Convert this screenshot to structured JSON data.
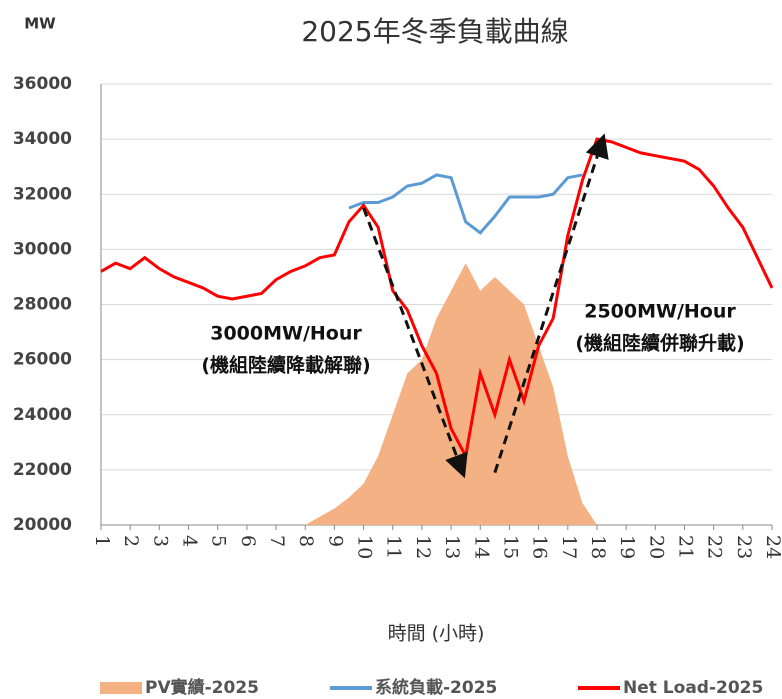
{
  "chart_data": {
    "type": "line",
    "title": "2025年冬季負載曲線",
    "y_axis_label": "MW",
    "x_axis_label": "時間 (小時)",
    "annotations": [
      "3000MW/Hour",
      "(機組陸續降載解聯)",
      "2500MW/Hour",
      "(機組陸續併聯升載)"
    ],
    "arrows": [
      {
        "x": [
          10,
          13.4
        ],
        "y": [
          31500,
          21900
        ]
      },
      {
        "x": [
          14.5,
          18.2
        ],
        "y": [
          21900,
          34000
        ]
      }
    ],
    "x": [
      1,
      1.5,
      2,
      2.5,
      3,
      3.5,
      4,
      4.5,
      5,
      5.5,
      6,
      6.5,
      7,
      7.5,
      8,
      8.5,
      9,
      9.5,
      10,
      10.5,
      11,
      11.5,
      12,
      12.5,
      13,
      13.5,
      14,
      14.5,
      15,
      15.5,
      16,
      16.5,
      17,
      17.5,
      18,
      18.5,
      19,
      19.5,
      20,
      20.5,
      21,
      21.5,
      22,
      22.5,
      23,
      23.5,
      24
    ],
    "xlim": [
      1,
      24
    ],
    "xticks": [
      1,
      2,
      3,
      4,
      5,
      6,
      7,
      8,
      9,
      10,
      11,
      12,
      13,
      14,
      15,
      16,
      17,
      18,
      19,
      20,
      21,
      22,
      23,
      24
    ],
    "ylim": [
      20000,
      36000
    ],
    "yticks": [
      20000,
      22000,
      24000,
      26000,
      28000,
      30000,
      32000,
      34000,
      36000
    ],
    "grid": true,
    "series": [
      {
        "name": "PV實績-2025",
        "color": "#f4b183",
        "kind": "area",
        "values": [
          null,
          null,
          null,
          null,
          null,
          null,
          null,
          null,
          null,
          null,
          null,
          null,
          null,
          null,
          20000,
          20300,
          20600,
          21000,
          21500,
          22500,
          24000,
          25500,
          26000,
          27500,
          28500,
          29500,
          28500,
          29000,
          28500,
          28000,
          26500,
          25000,
          22500,
          20800,
          20000,
          null,
          null,
          null,
          null,
          null,
          null,
          null,
          null,
          null,
          null,
          null,
          null
        ]
      },
      {
        "name": "系統負載-2025",
        "color": "#5b9bd5",
        "kind": "line",
        "values": [
          null,
          null,
          null,
          null,
          null,
          null,
          null,
          null,
          null,
          null,
          null,
          null,
          null,
          null,
          null,
          null,
          null,
          31500,
          31700,
          31700,
          31900,
          32300,
          32400,
          32700,
          32600,
          31000,
          30600,
          31200,
          31900,
          31900,
          31900,
          32000,
          32600,
          32700,
          null,
          null,
          null,
          null,
          null,
          null,
          null,
          null,
          null,
          null,
          null,
          null,
          null
        ]
      },
      {
        "name": "Net Load-2025",
        "color": "#ff0000",
        "kind": "line",
        "values": [
          29200,
          29500,
          29300,
          29700,
          29300,
          29000,
          28800,
          28600,
          28300,
          28200,
          28300,
          28400,
          28900,
          29200,
          29400,
          29700,
          29800,
          31000,
          31600,
          30800,
          28500,
          27800,
          26500,
          25500,
          23500,
          22500,
          25500,
          24000,
          26000,
          24500,
          26500,
          27500,
          30500,
          32500,
          34000,
          33900,
          33700,
          33500,
          33400,
          33300,
          33200,
          32900,
          32300,
          31500,
          30800,
          29700,
          28600
        ]
      }
    ]
  }
}
